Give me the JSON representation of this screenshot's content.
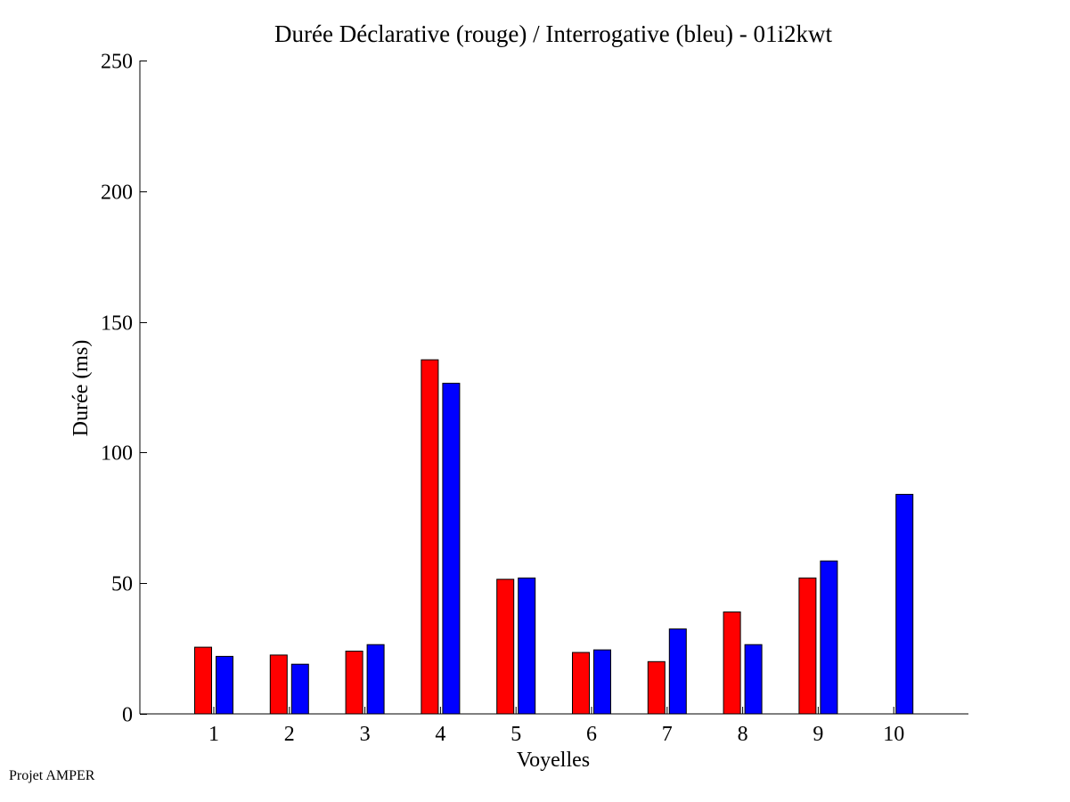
{
  "chart_data": {
    "type": "bar",
    "title": "Durée Déclarative (rouge) / Interrogative (bleu) - 01i2kwt",
    "xlabel": "Voyelles",
    "ylabel": "Durée (ms)",
    "ylim": [
      0,
      250
    ],
    "yticks": [
      0,
      50,
      100,
      150,
      200,
      250
    ],
    "categories": [
      "1",
      "2",
      "3",
      "4",
      "5",
      "6",
      "7",
      "8",
      "9",
      "10"
    ],
    "series": [
      {
        "color": "#ff0000",
        "values": [
          25.5,
          22.5,
          24,
          135.5,
          51.5,
          23.5,
          20,
          39,
          52,
          null
        ]
      },
      {
        "color": "#0000ff",
        "values": [
          22,
          19,
          26.5,
          126.5,
          52,
          24.5,
          32.5,
          26.5,
          58.5,
          84
        ]
      }
    ],
    "grid": false,
    "legend": "none"
  },
  "footer": {
    "note": "Projet AMPER"
  }
}
